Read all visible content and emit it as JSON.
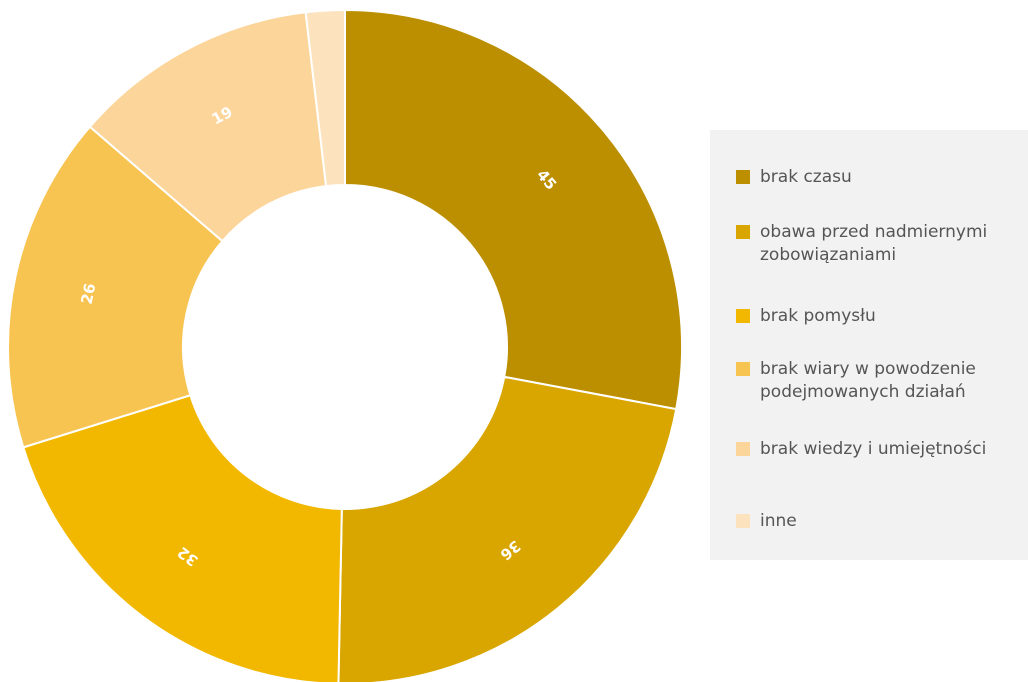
{
  "chart_data": {
    "type": "pie",
    "variant": "donut",
    "categories": [
      "brak czasu",
      "obawa przed nadmiernymi zobowiązaniami",
      "brak pomysłu",
      "brak wiary w powodzenie podejmowanych działań",
      "brak wiedzy i umiejętności",
      "inne"
    ],
    "values": [
      45,
      36,
      32,
      26,
      19,
      3
    ],
    "value_labels": [
      "45",
      "36",
      "32",
      "26",
      "19",
      ""
    ],
    "colors": [
      "#bc8f00",
      "#d9a600",
      "#f2b800",
      "#f7c452",
      "#fbd59a",
      "#fde3bd"
    ],
    "legend_position": "right"
  }
}
